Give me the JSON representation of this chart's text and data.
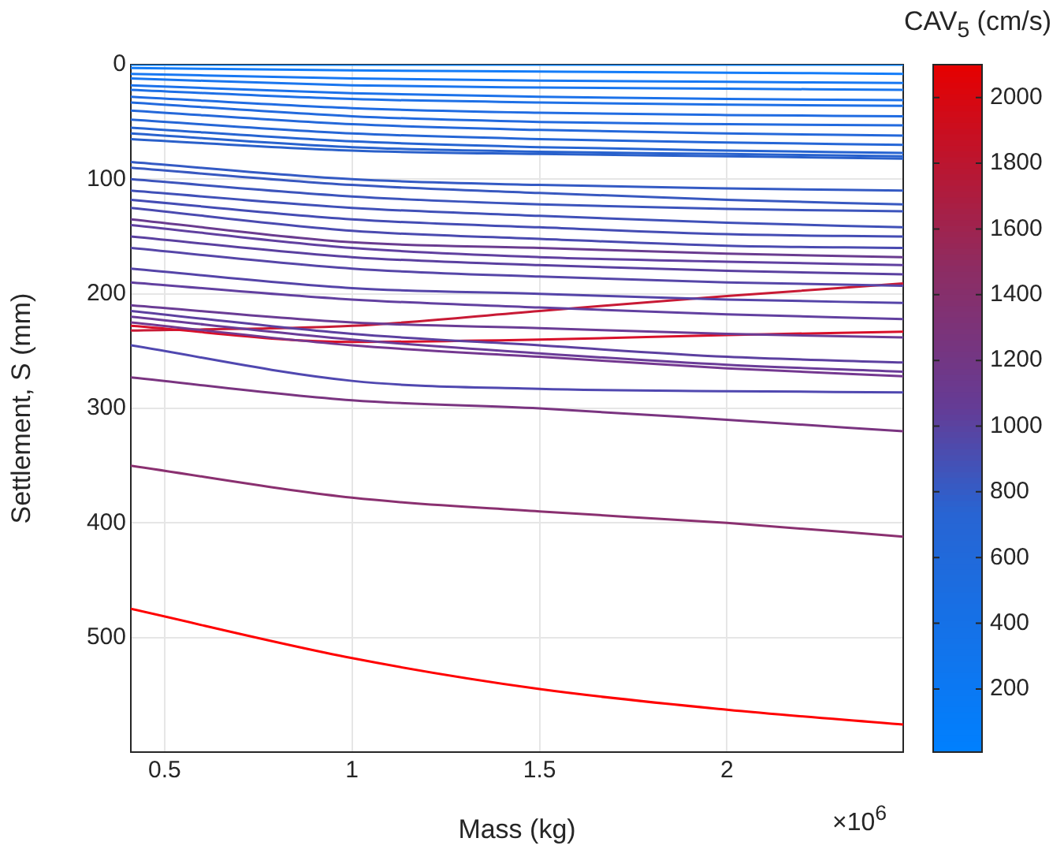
{
  "chart_data": {
    "type": "line",
    "xlabel": "Mass (kg)",
    "ylabel": "Settlement, S (mm)",
    "clabel": "CAV$_{5}$ (cm/s)",
    "annotations": [
      "×10$^{6}$"
    ],
    "x": [
      0.41,
      1,
      1.5,
      2,
      2.47
    ],
    "xlim": [
      0.41,
      2.47
    ],
    "xticks": [
      0.5,
      1,
      1.5,
      2
    ],
    "ylim": [
      600,
      0
    ],
    "yticks": [
      0,
      100,
      200,
      300,
      400,
      500
    ],
    "clim": [
      8,
      2100
    ],
    "cticks": [
      200,
      400,
      600,
      800,
      1000,
      1200,
      1400,
      1600,
      1800,
      2000
    ],
    "grid": true,
    "legend": false,
    "marker": "none",
    "line_style": "solid",
    "series": [
      {
        "color": "#0a80ff",
        "values": [
          0,
          0,
          0,
          0,
          0
        ]
      },
      {
        "color": "#137cf8",
        "values": [
          3,
          5,
          6,
          7,
          8
        ]
      },
      {
        "color": "#1878f2",
        "values": [
          8,
          12,
          14,
          15,
          16
        ]
      },
      {
        "color": "#1a76ee",
        "values": [
          12,
          18,
          20,
          21,
          22
        ]
      },
      {
        "color": "#1c72ea",
        "values": [
          18,
          25,
          28,
          30,
          31
        ]
      },
      {
        "color": "#1e70e6",
        "values": [
          22,
          30,
          33,
          35,
          36
        ]
      },
      {
        "color": "#206ce2",
        "values": [
          28,
          38,
          42,
          44,
          45
        ]
      },
      {
        "color": "#226ade",
        "values": [
          33,
          45,
          50,
          52,
          53
        ]
      },
      {
        "color": "#2468da",
        "values": [
          40,
          52,
          57,
          60,
          62
        ]
      },
      {
        "color": "#2566d6",
        "values": [
          48,
          60,
          65,
          68,
          70
        ]
      },
      {
        "color": "#2664d2",
        "values": [
          55,
          67,
          72,
          75,
          77
        ]
      },
      {
        "color": "#2862ce",
        "values": [
          60,
          72,
          76,
          78,
          80
        ]
      },
      {
        "color": "#2a60ca",
        "values": [
          65,
          75,
          78,
          80,
          82
        ]
      },
      {
        "color": "#345ac4",
        "values": [
          85,
          100,
          105,
          108,
          110
        ]
      },
      {
        "color": "#3858c0",
        "values": [
          90,
          105,
          112,
          118,
          122
        ]
      },
      {
        "color": "#3c54bc",
        "values": [
          100,
          115,
          122,
          126,
          128
        ]
      },
      {
        "color": "#4050b8",
        "values": [
          110,
          125,
          132,
          138,
          142
        ]
      },
      {
        "color": "#444cb4",
        "values": [
          118,
          135,
          142,
          148,
          150
        ]
      },
      {
        "color": "#4a4ab0",
        "values": [
          125,
          145,
          152,
          158,
          160
        ]
      },
      {
        "color": "#6a3c90",
        "values": [
          135,
          155,
          160,
          165,
          168
        ]
      },
      {
        "color": "#6040a0",
        "values": [
          140,
          160,
          168,
          172,
          175
        ]
      },
      {
        "color": "#5a40a0",
        "values": [
          150,
          168,
          175,
          180,
          183
        ]
      },
      {
        "color": "#5646a8",
        "values": [
          160,
          178,
          185,
          190,
          193
        ]
      },
      {
        "color": "#5544a8",
        "values": [
          178,
          195,
          200,
          205,
          208
        ]
      },
      {
        "color": "#6240a0",
        "values": [
          190,
          205,
          212,
          218,
          222
        ]
      },
      {
        "color": "#6a3c95",
        "values": [
          210,
          225,
          230,
          235,
          238
        ]
      },
      {
        "color": "#5c40a0",
        "values": [
          215,
          235,
          245,
          255,
          260
        ]
      },
      {
        "color": "#6a3c98",
        "values": [
          220,
          240,
          252,
          262,
          268
        ]
      },
      {
        "color": "#743890",
        "values": [
          225,
          245,
          255,
          265,
          272
        ]
      },
      {
        "color": "#d8102a",
        "values": [
          228,
          242,
          240,
          236,
          233
        ]
      },
      {
        "color": "#c81a35",
        "values": [
          232,
          228,
          215,
          202,
          191
        ]
      },
      {
        "color": "#5048b0",
        "values": [
          245,
          276,
          283,
          285,
          286
        ]
      },
      {
        "color": "#7a3480",
        "values": [
          273,
          293,
          300,
          310,
          320
        ]
      },
      {
        "color": "#8a3070",
        "values": [
          350,
          378,
          390,
          400,
          412
        ]
      },
      {
        "color": "#ff0000",
        "values": [
          475,
          518,
          545,
          563,
          576
        ]
      }
    ]
  }
}
